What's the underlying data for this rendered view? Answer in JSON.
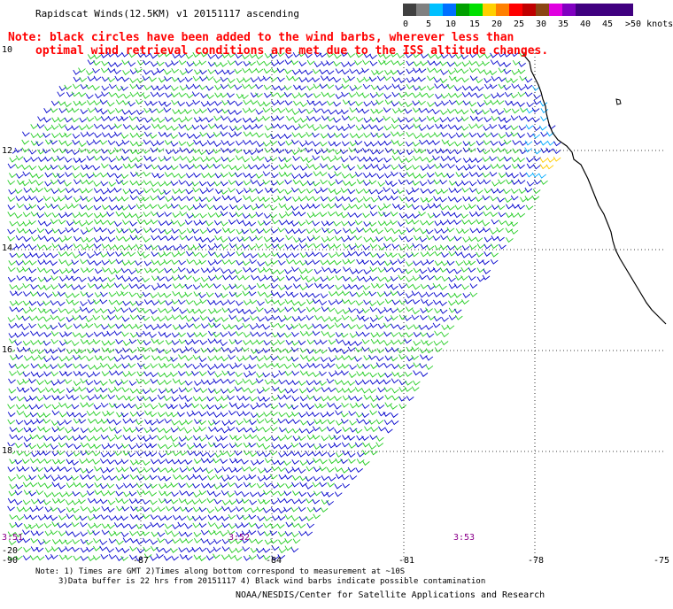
{
  "title": "Rapidscat Winds(12.5KM) v1 20151117 ascending",
  "note_line1": "Note: black circles have been added to the wind barbs, wherever less than",
  "note_line2": "optimal wind retrieval conditions are met due to the ISS altitude changes.",
  "legend": {
    "labels": [
      "0",
      "5",
      "10",
      "15",
      "20",
      "25",
      "30",
      "35",
      "40",
      "45",
      ">50 knots"
    ],
    "colors": [
      "#404040",
      "#808080",
      "#00c0ff",
      "#0070ff",
      "#00a000",
      "#00e000",
      "#ffd000",
      "#ff8000",
      "#ff0000",
      "#c00000",
      "#8b4513",
      "#e000e0",
      "#8000c0",
      "#400080"
    ]
  },
  "map": {
    "lat_labels": [
      "10",
      "12",
      "14",
      "16",
      "18",
      "-20"
    ],
    "lon_labels": [
      "-90",
      "-87",
      "-84",
      "-81",
      "-78",
      "-75"
    ],
    "time_labels": [
      "3:51",
      "3:52",
      "3:53"
    ],
    "barb_colors": {
      "low": "#0000cc",
      "mid": "#22cc22",
      "light": "#00aaff",
      "coast": "#ffcc00"
    }
  },
  "footer_line1": "Note: 1) Times are GMT 2)Times along bottom correspond to measurement at ~10S",
  "footer_line2": "3)Data buffer is 22 hrs from 20151117 4) Black wind barbs indicate possible contamination",
  "credit": "NOAA/NESDIS/Center for Satellite Applications and Research"
}
